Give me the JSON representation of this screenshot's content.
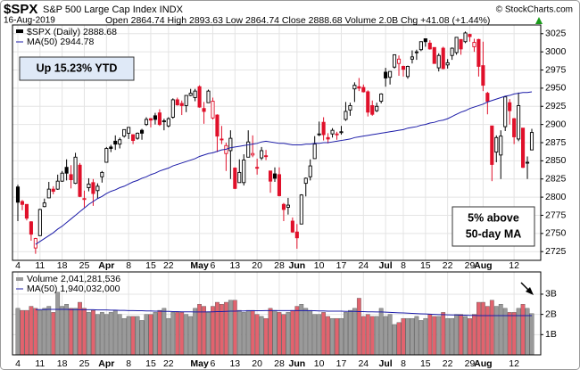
{
  "chart_data": {
    "type": "candlestick",
    "title": "$SPX",
    "subtitle": "S&P 500 Large Cap Index INDX",
    "credit": "© StockCharts.com",
    "date": "16-Aug-2019",
    "quote": "Open 2864.74 High 2893.63 Low 2864.74 Close 2888.68 Volume 2.0B Chg +41.08 (+1.44%)",
    "legend": [
      "$SPX (Daily) 2888.68",
      "MA(50) 2944.78"
    ],
    "annotations": [
      "Up 15.23% YTD",
      [
        "5% above",
        "50-day MA"
      ]
    ],
    "colors": {
      "up": "#000000",
      "down": "#e0102a",
      "ma": "#1c1ca8",
      "volume_up": "#9a9a9a",
      "volume_down": "#e2636e"
    },
    "grid": true,
    "ylim": [
      2713,
      3037
    ],
    "yticks": [
      2725,
      2750,
      2775,
      2800,
      2825,
      2850,
      2875,
      2900,
      2925,
      2950,
      2975,
      3000,
      3025
    ],
    "categories": [
      "4",
      null,
      null,
      null,
      null,
      "11",
      null,
      null,
      null,
      null,
      "18",
      null,
      null,
      null,
      null,
      "25",
      null,
      null,
      null,
      null,
      "Apr",
      null,
      null,
      null,
      null,
      "8",
      null,
      null,
      null,
      null,
      "15",
      null,
      null,
      null,
      "22",
      null,
      null,
      null,
      null,
      null,
      null,
      "May",
      null,
      null,
      "6",
      null,
      null,
      null,
      null,
      "13",
      null,
      null,
      null,
      null,
      "20",
      null,
      null,
      null,
      null,
      "28",
      null,
      null,
      null,
      "Jun",
      null,
      null,
      null,
      null,
      "10",
      null,
      null,
      null,
      null,
      "17",
      null,
      null,
      null,
      null,
      "24",
      null,
      null,
      null,
      null,
      "Jul",
      null,
      null,
      null,
      "8",
      null,
      null,
      null,
      null,
      "15",
      null,
      null,
      null,
      null,
      "22",
      null,
      null,
      null,
      null,
      "29",
      null,
      null,
      "Aug",
      null,
      null,
      null,
      null,
      null,
      null,
      "12",
      null,
      null,
      null,
      null
    ],
    "open": [
      2814,
      2794,
      2790,
      2766,
      2730,
      2747,
      2787,
      2799,
      2811,
      2811,
      2822,
      2841,
      2831,
      2819,
      2844,
      2797,
      2813,
      2820,
      2809,
      2828,
      2848,
      2869,
      2877,
      2873,
      2884,
      2888,
      2886,
      2881,
      2892,
      2900,
      2908,
      2912,
      2916,
      2904,
      2898,
      2910,
      2934,
      2929,
      2926,
      2940,
      2937,
      2952,
      2922,
      2930,
      2909,
      2913,
      2880,
      2860,
      2864,
      2840,
      2820,
      2820,
      2855,
      2858,
      2841,
      2854,
      2857,
      2836,
      2832,
      2831,
      2790,
      2786,
      2767,
      2752,
      2763,
      2819,
      2828,
      2853,
      2886,
      2903,
      2882,
      2887,
      2887,
      2889,
      2907,
      2920,
      2949,
      2952,
      2951,
      2945,
      2926,
      2919,
      2932,
      2972,
      2965,
      2979,
      2984,
      2980,
      2966,
      2990,
      2999,
      3003,
      3018,
      3012,
      3006,
      2978,
      3005,
      2982,
      2995,
      2999,
      3017,
      3014,
      3024,
      3007,
      3017,
      2981,
      2943,
      2898,
      2862,
      2858,
      2897,
      2930,
      2908,
      2880,
      2895,
      2847,
      2865
    ],
    "high": [
      2817,
      2796,
      2790,
      2767,
      2744,
      2784,
      2798,
      2821,
      2815,
      2831,
      2836,
      2852,
      2844,
      2861,
      2847,
      2809,
      2826,
      2825,
      2819,
      2836,
      2869,
      2872,
      2885,
      2882,
      2893,
      2896,
      2886,
      2889,
      2894,
      2910,
      2909,
      2916,
      2921,
      2908,
      2910,
      2936,
      2937,
      2933,
      2940,
      2949,
      2949,
      2954,
      2931,
      2948,
      2937,
      2914,
      2898,
      2875,
      2892,
      2841,
      2852,
      2859,
      2892,
      2885,
      2853,
      2869,
      2865,
      2836,
      2841,
      2841,
      2792,
      2799,
      2772,
      2763,
      2804,
      2827,
      2852,
      2884,
      2904,
      2910,
      2888,
      2895,
      2890,
      2898,
      2931,
      2930,
      2958,
      2964,
      2955,
      2947,
      2933,
      2930,
      2943,
      2978,
      2973,
      2996,
      2995,
      2981,
      2981,
      3002,
      3003,
      3014,
      3018,
      3016,
      3006,
      2998,
      3007,
      2990,
      3006,
      3020,
      3017,
      3028,
      3025,
      3018,
      3018,
      3014,
      2945,
      2898,
      2885,
      2892,
      2938,
      2935,
      2909,
      2944,
      2895,
      2856,
      2894
    ],
    "low": [
      2767,
      2782,
      2768,
      2740,
      2722,
      2747,
      2786,
      2799,
      2804,
      2810,
      2821,
      2823,
      2812,
      2818,
      2800,
      2786,
      2808,
      2788,
      2798,
      2820,
      2848,
      2862,
      2865,
      2867,
      2882,
      2880,
      2873,
      2879,
      2879,
      2898,
      2896,
      2900,
      2898,
      2892,
      2896,
      2908,
      2926,
      2913,
      2917,
      2939,
      2932,
      2923,
      2901,
      2930,
      2907,
      2862,
      2873,
      2836,
      2825,
      2811,
      2820,
      2816,
      2855,
      2855,
      2831,
      2851,
      2851,
      2806,
      2821,
      2801,
      2767,
      2776,
      2751,
      2729,
      2763,
      2801,
      2823,
      2853,
      2884,
      2878,
      2874,
      2882,
      2879,
      2886,
      2905,
      2912,
      2931,
      2946,
      2944,
      2911,
      2912,
      2917,
      2929,
      2952,
      2955,
      2977,
      2967,
      2966,
      2963,
      2984,
      2989,
      3001,
      3007,
      3003,
      2985,
      2973,
      2976,
      2977,
      2989,
      2996,
      2996,
      3012,
      3014,
      3000,
      2966,
      2946,
      2914,
      2822,
      2848,
      2825,
      2891,
      2900,
      2873,
      2877,
      2840,
      2825,
      2865
    ],
    "close": [
      2793,
      2790,
      2771,
      2749,
      2743,
      2783,
      2792,
      2811,
      2808,
      2822,
      2833,
      2833,
      2824,
      2855,
      2801,
      2798,
      2818,
      2805,
      2815,
      2834,
      2867,
      2867,
      2873,
      2879,
      2893,
      2896,
      2878,
      2888,
      2888,
      2907,
      2906,
      2907,
      2900,
      2905,
      2908,
      2934,
      2927,
      2926,
      2940,
      2943,
      2946,
      2924,
      2918,
      2946,
      2932,
      2884,
      2879,
      2871,
      2881,
      2812,
      2834,
      2851,
      2876,
      2860,
      2840,
      2864,
      2856,
      2822,
      2826,
      2802,
      2783,
      2789,
      2752,
      2744,
      2803,
      2826,
      2843,
      2873,
      2887,
      2886,
      2880,
      2892,
      2887,
      2890,
      2918,
      2926,
      2954,
      2950,
      2945,
      2917,
      2914,
      2925,
      2942,
      2964,
      2973,
      2996,
      2990,
      2976,
      2980,
      2993,
      3000,
      3014,
      3014,
      3004,
      2984,
      2995,
      2977,
      2985,
      3005,
      3020,
      3004,
      3026,
      3021,
      3013,
      2980,
      2954,
      2932,
      2845,
      2882,
      2884,
      2938,
      2919,
      2883,
      2926,
      2841,
      2848,
      2889
    ],
    "ma50": [
      null,
      null,
      null,
      null,
      2735,
      2739,
      2743,
      2747,
      2751,
      2756,
      2760,
      2765,
      2770,
      2775,
      2780,
      2785,
      2790,
      2794,
      2798,
      2801,
      2805,
      2808,
      2810,
      2813,
      2815,
      2818,
      2821,
      2823,
      2826,
      2828,
      2831,
      2833,
      2836,
      2838,
      2840,
      2843,
      2845,
      2847,
      2849,
      2851,
      2853,
      2856,
      2858,
      2860,
      2861,
      2863,
      2865,
      2866,
      2868,
      2869,
      2870,
      2871,
      2872,
      2873,
      2874,
      2876,
      2877,
      2876,
      2875,
      2874,
      2874,
      2873,
      2872,
      2872,
      2872,
      2873,
      2873,
      2874,
      2874,
      2875,
      2875,
      2876,
      2877,
      2878,
      2879,
      2880,
      2882,
      2883,
      2884,
      2885,
      2886,
      2887,
      2888,
      2889,
      2890,
      2891,
      2892,
      2893,
      2895,
      2896,
      2897,
      2899,
      2900,
      2902,
      2903,
      2905,
      2906,
      2908,
      2911,
      2914,
      2917,
      2919,
      2922,
      2924,
      2926,
      2928,
      2931,
      2933,
      2935,
      2937,
      2939,
      2940,
      2942,
      2943,
      2944,
      2944,
      2945
    ],
    "volume": {
      "legend": [
        "Volume 2,041,281,536",
        "MA(50) 1,940,032,000"
      ],
      "ylim": [
        0,
        4100000000
      ],
      "yticks": [
        {
          "value": 1000000000,
          "label": "1B"
        },
        {
          "value": 2000000000,
          "label": "2B"
        },
        {
          "value": 3000000000,
          "label": "3B"
        }
      ],
      "values": [
        2300000000.0,
        2200000000.0,
        2200000000.0,
        2400000000.0,
        2300000000.0,
        2200000000.0,
        2300000000.0,
        2400000000.0,
        2100000000.0,
        3100000000.0,
        2400000000.0,
        2500000000.0,
        2300000000.0,
        2300000000.0,
        2600000000.0,
        2300000000.0,
        2100000000.0,
        2200000000.0,
        2000000000.0,
        2100000000.0,
        2000000000.0,
        2100000000.0,
        2200000000.0,
        2000000000.0,
        1800000000.0,
        1900000000.0,
        1900000000.0,
        1900000000.0,
        1700000000.0,
        2000000000.0,
        2000000000.0,
        2100000000.0,
        2200000000.0,
        2300000000.0,
        1800000000.0,
        2100000000.0,
        2100000000.0,
        2100000000.0,
        2000000000.0,
        1900000000.0,
        2300000000.0,
        2500000000.0,
        2400000000.0,
        2100000000.0,
        2400000000.0,
        2600000000.0,
        2500000000.0,
        2600000000.0,
        2700000000.0,
        2700000000.0,
        2200000000.0,
        2100000000.0,
        2200000000.0,
        2200000000.0,
        2000000000.0,
        1900000000.0,
        1800000000.0,
        2300000000.0,
        2200000000.0,
        2100000000.0,
        2000000000.0,
        2100000000.0,
        2200000000.0,
        2400000000.0,
        2500000000.0,
        2300000000.0,
        2200000000.0,
        2000000000.0,
        2000000000.0,
        2100000000.0,
        1900000000.0,
        1800000000.0,
        1800000000.0,
        1800000000.0,
        2100000000.0,
        2200000000.0,
        2300000000.0,
        2800000000.0,
        1900000000.0,
        2000000000.0,
        1900000000.0,
        1900000000.0,
        2300000000.0,
        1900000000.0,
        2000000000.0,
        1500000000.0,
        1600000000.0,
        1800000000.0,
        1800000000.0,
        1800000000.0,
        1900000000.0,
        1700000000.0,
        1800000000.0,
        2000000000.0,
        1900000000.0,
        1900000000.0,
        2100000000.0,
        1800000000.0,
        1800000000.0,
        2000000000.0,
        2000000000.0,
        1900000000.0,
        1800000000.0,
        2000000000.0,
        2600000000.0,
        2600000000.0,
        2400000000.0,
        2700000000.0,
        2400000000.0,
        2500000000.0,
        2300000000.0,
        2100000000.0,
        2100000000.0,
        2300000000.0,
        2500000000.0,
        2300000000.0,
        2041281536
      ],
      "ma": [
        null,
        null,
        null,
        null,
        2240000000.0,
        2240000000.0,
        2240000000.0,
        2250000000.0,
        2250000000.0,
        2250000000.0,
        2250000000.0,
        2250000000.0,
        2240000000.0,
        2240000000.0,
        2240000000.0,
        2230000000.0,
        2230000000.0,
        2230000000.0,
        2220000000.0,
        2220000000.0,
        2220000000.0,
        2210000000.0,
        2210000000.0,
        2200000000.0,
        2200000000.0,
        2190000000.0,
        2190000000.0,
        2180000000.0,
        2180000000.0,
        2170000000.0,
        2170000000.0,
        2160000000.0,
        2160000000.0,
        2150000000.0,
        2150000000.0,
        2140000000.0,
        2140000000.0,
        2130000000.0,
        2130000000.0,
        2130000000.0,
        2120000000.0,
        2120000000.0,
        2120000000.0,
        2130000000.0,
        2130000000.0,
        2140000000.0,
        2140000000.0,
        2150000000.0,
        2160000000.0,
        2160000000.0,
        2170000000.0,
        2170000000.0,
        2180000000.0,
        2180000000.0,
        2180000000.0,
        2180000000.0,
        2190000000.0,
        2190000000.0,
        2190000000.0,
        2190000000.0,
        2190000000.0,
        2190000000.0,
        2190000000.0,
        2190000000.0,
        2190000000.0,
        2190000000.0,
        2180000000.0,
        2180000000.0,
        2170000000.0,
        2170000000.0,
        2160000000.0,
        2160000000.0,
        2160000000.0,
        2160000000.0,
        2150000000.0,
        2150000000.0,
        2150000000.0,
        2140000000.0,
        2140000000.0,
        2130000000.0,
        2130000000.0,
        2120000000.0,
        2120000000.0,
        2110000000.0,
        2100000000.0,
        2090000000.0,
        2080000000.0,
        2070000000.0,
        2060000000.0,
        2050000000.0,
        2040000000.0,
        2030000000.0,
        2020000000.0,
        2010000000.0,
        2000000000.0,
        1990000000.0,
        1990000000.0,
        1980000000.0,
        1970000000.0,
        1970000000.0,
        1960000000.0,
        1960000000.0,
        1950000000.0,
        1950000000.0,
        1940000000.0,
        1940000000.0,
        1940000000.0,
        1940000000.0,
        1940000000.0,
        1940000000.0,
        1940000000.0,
        1940000000.0,
        1940000000.0,
        1940000000.0,
        1940000000.0,
        1940000000.0,
        1940032000
      ]
    }
  }
}
